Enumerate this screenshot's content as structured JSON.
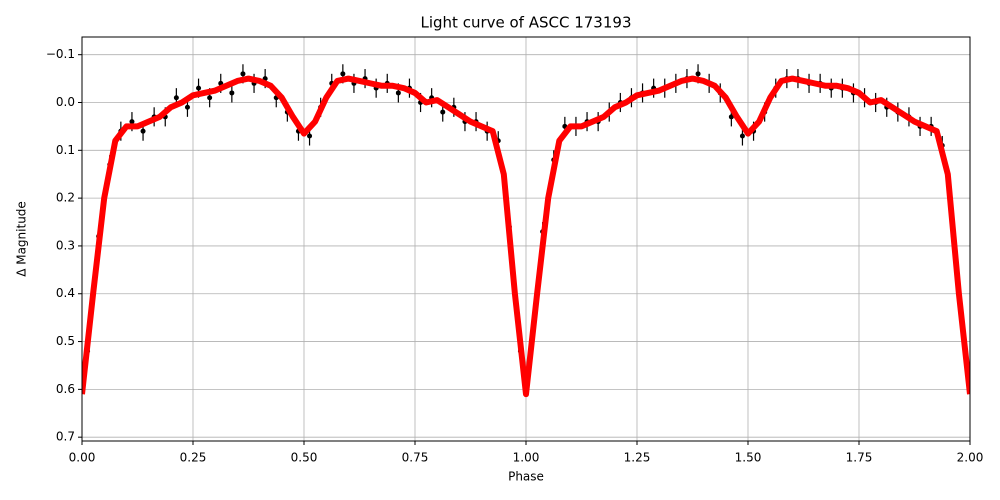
{
  "chart_data": {
    "type": "scatter",
    "title": "Light curve of ASCC 173193",
    "x_label": "Phase",
    "y_label": "Δ Magnitude",
    "xlim": [
      0,
      2
    ],
    "ylim": [
      0.708,
      -0.137
    ],
    "grid": true,
    "xticks": [
      {
        "value": 0,
        "label": "0.00"
      },
      {
        "value": 0.25,
        "label": "0.25"
      },
      {
        "value": 0.5,
        "label": "0.50"
      },
      {
        "value": 0.75,
        "label": "0.75"
      },
      {
        "value": 1,
        "label": "1.00"
      },
      {
        "value": 1.25,
        "label": "1.25"
      },
      {
        "value": 1.5,
        "label": "1.50"
      },
      {
        "value": 1.75,
        "label": "1.75"
      },
      {
        "value": 2,
        "label": "2.00"
      }
    ],
    "yticks": [
      {
        "value": -0.1,
        "label": "−0.1"
      },
      {
        "value": 0,
        "label": "0.0"
      },
      0.1,
      0.2,
      0.3,
      0.4,
      0.5,
      0.6,
      0.7
    ],
    "series": [
      {
        "type": "errorbar",
        "color": "#000000",
        "yerr": 0.02,
        "x": [
          0.0125,
          0.0375,
          0.0625,
          0.0875,
          0.1125,
          0.1375,
          0.1625,
          0.1875,
          0.2125,
          0.2375,
          0.2625,
          0.2875,
          0.3125,
          0.3375,
          0.3625,
          0.3875,
          0.4125,
          0.4375,
          0.4625,
          0.4875,
          0.5125,
          0.5375,
          0.5625,
          0.5875,
          0.6125,
          0.6375,
          0.6625,
          0.6875,
          0.7125,
          0.7375,
          0.7625,
          0.7875,
          0.8125,
          0.8375,
          0.8625,
          0.8875,
          0.9125,
          0.9375,
          0.9625,
          0.9875,
          1.0125,
          1.0375,
          1.0625,
          1.0875,
          1.1125,
          1.1375,
          1.1625,
          1.1875,
          1.2125,
          1.2375,
          1.2625,
          1.2875,
          1.3125,
          1.3375,
          1.3625,
          1.3875,
          1.4125,
          1.4375,
          1.4625,
          1.4875,
          1.5125,
          1.5375,
          1.5625,
          1.5875,
          1.6125,
          1.6375,
          1.6625,
          1.6875,
          1.7125,
          1.7375,
          1.7625,
          1.7875,
          1.8125,
          1.8375,
          1.8625,
          1.8875,
          1.9125,
          1.9375,
          1.9625,
          1.9875
        ],
        "values": [
          0.52,
          0.28,
          0.13,
          0.06,
          0.04,
          0.06,
          0.03,
          0.03,
          -0.01,
          0.01,
          -0.03,
          -0.01,
          -0.04,
          -0.02,
          -0.06,
          -0.04,
          -0.05,
          -0.01,
          0.02,
          0.06,
          0.07,
          0.01,
          -0.04,
          -0.06,
          -0.04,
          -0.05,
          -0.03,
          -0.04,
          -0.02,
          -0.03,
          0.0,
          -0.01,
          0.02,
          0.01,
          0.04,
          0.04,
          0.06,
          0.08,
          0.26,
          0.52,
          0.5,
          0.27,
          0.12,
          0.05,
          0.05,
          0.04,
          0.04,
          0.02,
          0.0,
          -0.01,
          -0.02,
          -0.03,
          -0.03,
          -0.04,
          -0.05,
          -0.06,
          -0.04,
          -0.02,
          0.03,
          0.07,
          0.06,
          0.02,
          -0.03,
          -0.05,
          -0.05,
          -0.04,
          -0.04,
          -0.03,
          -0.03,
          -0.02,
          -0.01,
          0.0,
          0.01,
          0.02,
          0.03,
          0.05,
          0.05,
          0.09,
          0.28,
          0.5
        ]
      },
      {
        "type": "line",
        "color": "#ff0000",
        "x": [
          0,
          0.025,
          0.05,
          0.075,
          0.1,
          0.125,
          0.15,
          0.175,
          0.2,
          0.225,
          0.25,
          0.275,
          0.3,
          0.325,
          0.35,
          0.375,
          0.4,
          0.425,
          0.45,
          0.475,
          0.5,
          0.525,
          0.55,
          0.575,
          0.6,
          0.625,
          0.65,
          0.675,
          0.7,
          0.725,
          0.75,
          0.775,
          0.8,
          0.825,
          0.85,
          0.875,
          0.9,
          0.925,
          0.95,
          0.975,
          1.0,
          1.025,
          1.05,
          1.075,
          1.1,
          1.125,
          1.15,
          1.175,
          1.2,
          1.225,
          1.25,
          1.275,
          1.3,
          1.325,
          1.35,
          1.375,
          1.4,
          1.425,
          1.45,
          1.475,
          1.5,
          1.525,
          1.55,
          1.575,
          1.6,
          1.625,
          1.65,
          1.675,
          1.7,
          1.725,
          1.75,
          1.775,
          1.8,
          1.825,
          1.85,
          1.875,
          1.9,
          1.925,
          1.95,
          1.975,
          2.0
        ],
        "values": [
          0.61,
          0.4,
          0.2,
          0.08,
          0.05,
          0.05,
          0.04,
          0.03,
          0.01,
          0.0,
          -0.015,
          -0.02,
          -0.025,
          -0.035,
          -0.045,
          -0.05,
          -0.045,
          -0.035,
          -0.01,
          0.03,
          0.065,
          0.04,
          -0.01,
          -0.045,
          -0.05,
          -0.045,
          -0.04,
          -0.035,
          -0.035,
          -0.03,
          -0.02,
          0.0,
          -0.005,
          0.01,
          0.025,
          0.04,
          0.05,
          0.06,
          0.15,
          0.4,
          0.61,
          0.4,
          0.2,
          0.08,
          0.05,
          0.05,
          0.04,
          0.03,
          0.01,
          0.0,
          -0.015,
          -0.02,
          -0.025,
          -0.035,
          -0.045,
          -0.05,
          -0.045,
          -0.035,
          -0.01,
          0.03,
          0.065,
          0.04,
          -0.01,
          -0.045,
          -0.05,
          -0.045,
          -0.04,
          -0.035,
          -0.035,
          -0.03,
          -0.02,
          0.0,
          -0.005,
          0.01,
          0.025,
          0.04,
          0.05,
          0.06,
          0.15,
          0.4,
          0.61
        ]
      }
    ]
  }
}
